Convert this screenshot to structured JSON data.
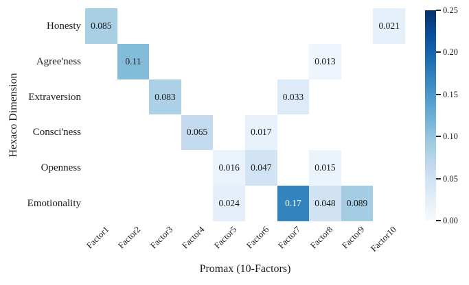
{
  "chart_data": {
    "type": "heatmap",
    "title": "",
    "xlabel": "Promax (10-Factors)",
    "ylabel": "Hexaco Dimension",
    "rows": [
      "Honesty",
      "Agree'ness",
      "Extraversion",
      "Consci'ness",
      "Openness",
      "Emotionality"
    ],
    "columns": [
      "Factor1",
      "Factor2",
      "Factor3",
      "Factor4",
      "Factor5",
      "Factor6",
      "Factor7",
      "Factor8",
      "Factor9",
      "Factor10"
    ],
    "cells": [
      {
        "row": 0,
        "col": 0,
        "value": 0.085,
        "label": "0.085"
      },
      {
        "row": 0,
        "col": 9,
        "value": 0.021,
        "label": "0.021"
      },
      {
        "row": 1,
        "col": 1,
        "value": 0.11,
        "label": "0.11"
      },
      {
        "row": 1,
        "col": 7,
        "value": 0.013,
        "label": "0.013"
      },
      {
        "row": 2,
        "col": 2,
        "value": 0.083,
        "label": "0.083"
      },
      {
        "row": 2,
        "col": 6,
        "value": 0.033,
        "label": "0.033"
      },
      {
        "row": 3,
        "col": 3,
        "value": 0.065,
        "label": "0.065"
      },
      {
        "row": 3,
        "col": 5,
        "value": 0.017,
        "label": "0.017"
      },
      {
        "row": 4,
        "col": 4,
        "value": 0.016,
        "label": "0.016"
      },
      {
        "row": 4,
        "col": 5,
        "value": 0.047,
        "label": "0.047"
      },
      {
        "row": 4,
        "col": 7,
        "value": 0.015,
        "label": "0.015"
      },
      {
        "row": 5,
        "col": 4,
        "value": 0.024,
        "label": "0.024"
      },
      {
        "row": 5,
        "col": 6,
        "value": 0.17,
        "label": "0.17"
      },
      {
        "row": 5,
        "col": 7,
        "value": 0.048,
        "label": "0.048"
      },
      {
        "row": 5,
        "col": 8,
        "value": 0.089,
        "label": "0.089"
      }
    ],
    "colorbar": {
      "min": 0.0,
      "max": 0.25,
      "colormap": "Blues",
      "tick_labels": [
        "0.25",
        "0.20",
        "0.15",
        "0.10",
        "0.05",
        "0.00"
      ]
    },
    "colors": {
      "background": "#ffffff",
      "text": "#1a1a1a",
      "tick_mark": "#262626",
      "annotation_light": "#ffffff",
      "colormap_low": "#f7fbff",
      "colormap_high": "#08306b"
    },
    "layout_hints": {
      "grid": false,
      "legend_position": "right-colorbar",
      "x_tick_rotation_deg": 45
    }
  }
}
